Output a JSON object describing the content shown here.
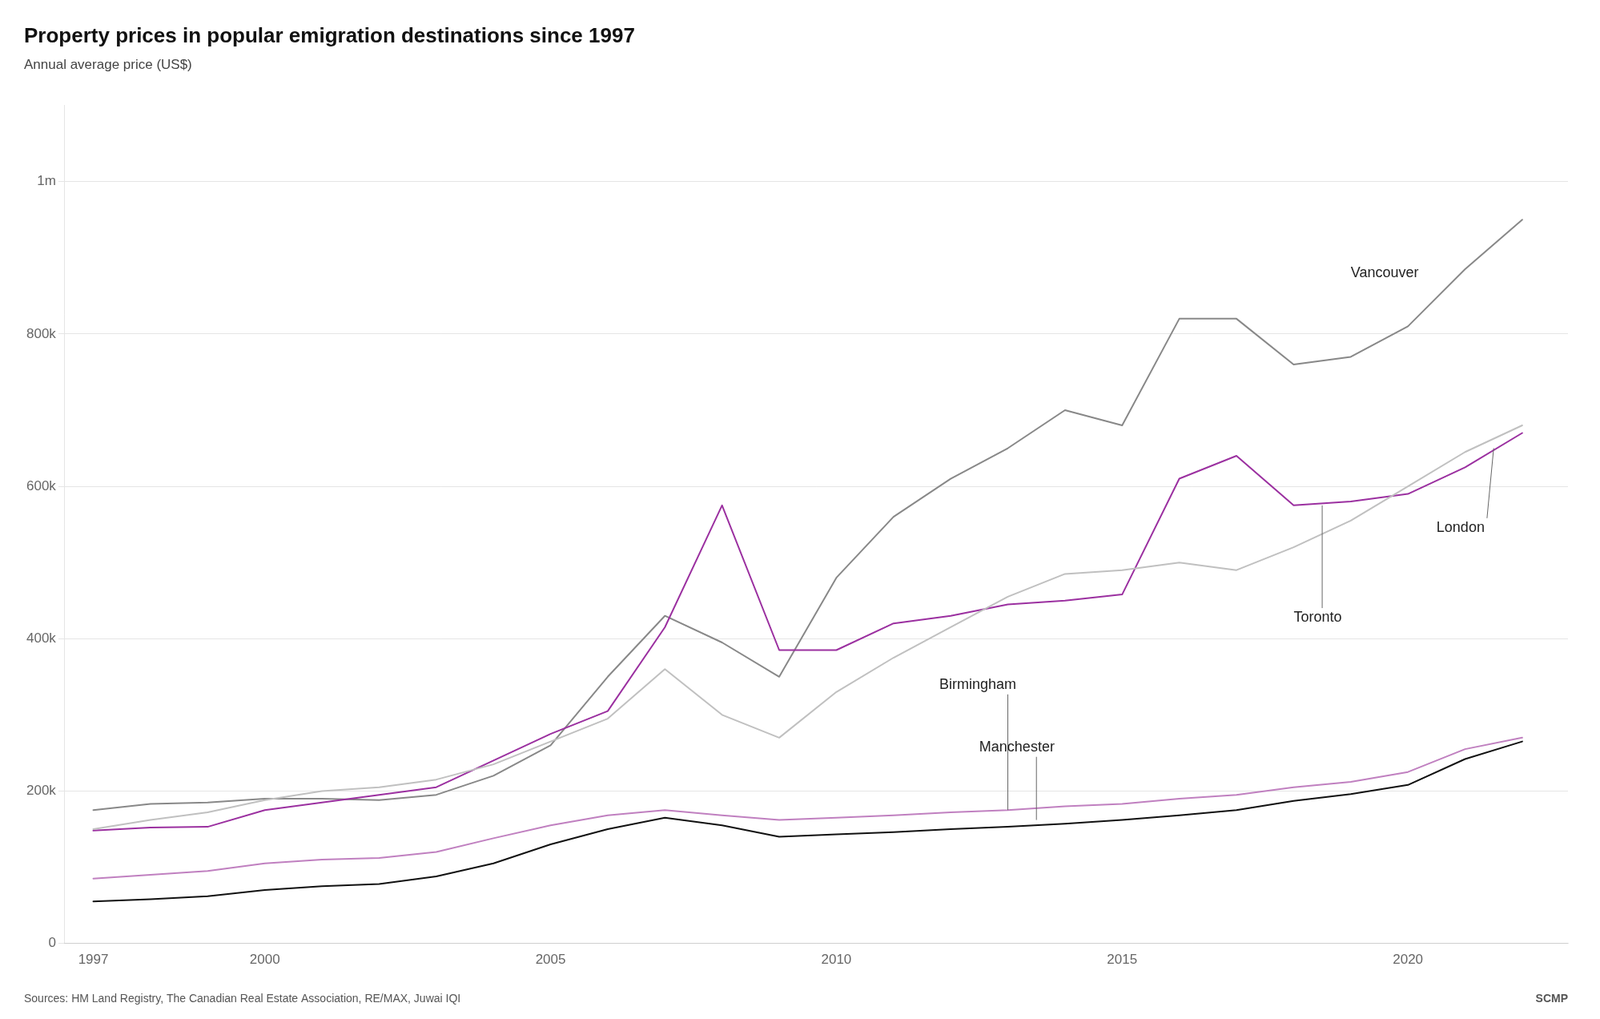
{
  "chart_data": {
    "type": "line",
    "title": "Property prices in popular emigration destinations since 1997",
    "ylabel": "Annual average price (US$)",
    "source": "Sources: HM Land Registry, The Canadian Real Estate Association, RE/MAX, Juwai IQI",
    "credit": "SCMP",
    "x": [
      1997,
      1998,
      1999,
      2000,
      2001,
      2002,
      2003,
      2004,
      2005,
      2006,
      2007,
      2008,
      2009,
      2010,
      2011,
      2012,
      2013,
      2014,
      2015,
      2016,
      2017,
      2018,
      2019,
      2020,
      2021,
      2022
    ],
    "series": [
      {
        "name": "Manchester",
        "color": "#111111",
        "values": [
          55000,
          58000,
          62000,
          70000,
          75000,
          78000,
          88000,
          105000,
          130000,
          150000,
          165000,
          155000,
          140000,
          143000,
          146000,
          150000,
          153000,
          157000,
          162000,
          168000,
          175000,
          187000,
          196000,
          208000,
          242000,
          265000
        ]
      },
      {
        "name": "Birmingham",
        "color": "#c080c0",
        "values": [
          85000,
          90000,
          95000,
          105000,
          110000,
          112000,
          120000,
          138000,
          155000,
          168000,
          175000,
          168000,
          162000,
          165000,
          168000,
          172000,
          175000,
          180000,
          183000,
          190000,
          195000,
          205000,
          212000,
          225000,
          255000,
          270000
        ]
      },
      {
        "name": "London",
        "color": "#c0c0c0",
        "values": [
          150000,
          162000,
          172000,
          188000,
          200000,
          205000,
          215000,
          235000,
          265000,
          295000,
          360000,
          300000,
          270000,
          330000,
          375000,
          415000,
          455000,
          485000,
          490000,
          500000,
          490000,
          520000,
          555000,
          600000,
          645000,
          680000
        ]
      },
      {
        "name": "Toronto",
        "color": "#9b30a0",
        "values": [
          148000,
          152000,
          153000,
          175000,
          185000,
          195000,
          205000,
          240000,
          275000,
          305000,
          415000,
          575000,
          385000,
          385000,
          420000,
          430000,
          445000,
          450000,
          458000,
          610000,
          640000,
          575000,
          580000,
          590000,
          625000,
          670000
        ]
      },
      {
        "name": "Vancouver",
        "color": "#888888",
        "values": [
          175000,
          183000,
          185000,
          190000,
          190000,
          188000,
          195000,
          220000,
          260000,
          350000,
          430000,
          395000,
          350000,
          480000,
          560000,
          610000,
          650000,
          700000,
          680000,
          820000,
          820000,
          760000,
          770000,
          810000,
          885000,
          950000
        ]
      }
    ],
    "xlim": [
      1996.5,
      2022.8
    ],
    "xticks": [
      1997,
      2000,
      2005,
      2010,
      2015,
      2020
    ],
    "ylim": [
      0,
      1100000
    ],
    "yticks": [
      0,
      {
        "value": 200000,
        "label": "200k"
      },
      {
        "value": 400000,
        "label": "400k"
      },
      {
        "value": 600000,
        "label": "600k"
      },
      {
        "value": 800000,
        "label": "800k"
      },
      {
        "value": 1000000,
        "label": "1m"
      }
    ],
    "grid": "y",
    "marker": "none",
    "annotations": [
      {
        "text": "Vancouver",
        "x": 2019.0,
        "y": 870000
      },
      {
        "text": "London",
        "x": 2020.5,
        "y": 555000,
        "arrow_x": 2021.5,
        "arrow_y": 650000
      },
      {
        "text": "Toronto",
        "x": 2018.0,
        "y": 437000,
        "arrow_x": 2018.5,
        "arrow_y": 575000
      },
      {
        "text": "Birmingham",
        "x": 2011.8,
        "y": 330000,
        "arrow_x": 2013.0,
        "arrow_y": 175000
      },
      {
        "text": "Manchester",
        "x": 2012.5,
        "y": 248000,
        "arrow_x": 2013.5,
        "arrow_y": 162000
      }
    ]
  }
}
